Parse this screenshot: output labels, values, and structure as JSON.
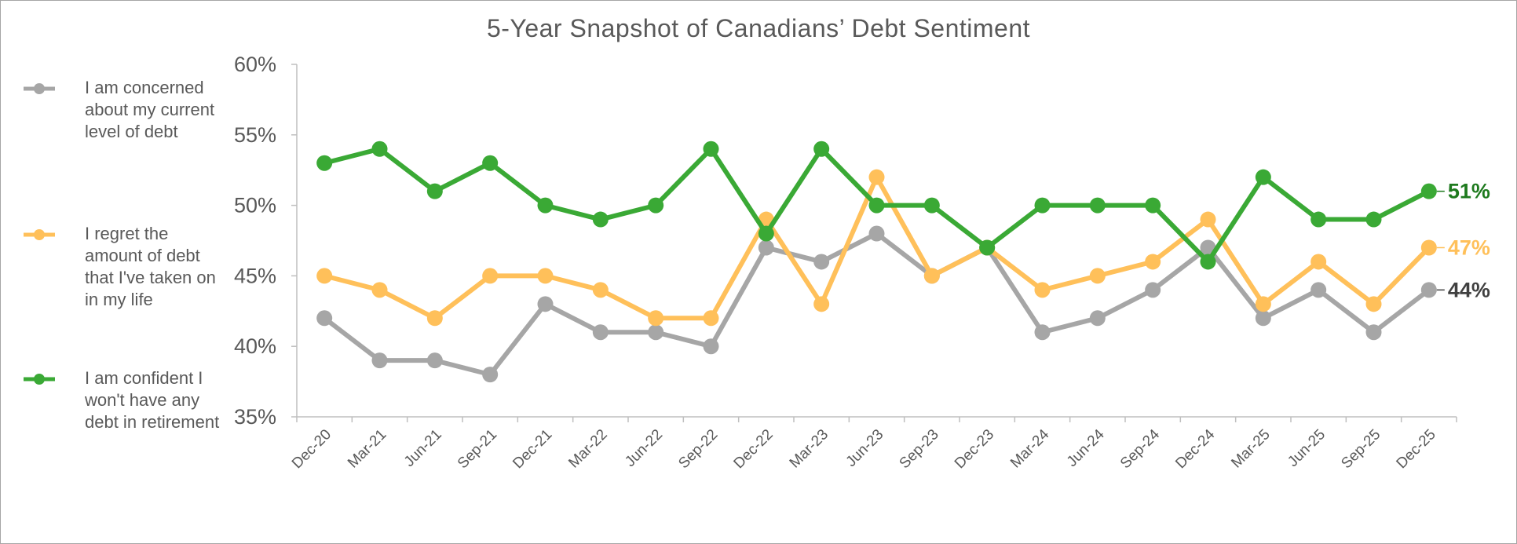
{
  "chart_data": {
    "type": "line",
    "title": "5-Year Snapshot of Canadians’ Debt Sentiment",
    "xlabel": "",
    "ylabel": "",
    "ylim": [
      35,
      60
    ],
    "yticks": [
      "60%",
      "55%",
      "50%",
      "45%",
      "40%",
      "35%"
    ],
    "ytick_values": [
      60,
      55,
      50,
      45,
      40,
      35
    ],
    "categories": [
      "Dec-20",
      "Mar-21",
      "Jun-21",
      "Sep-21",
      "Dec-21",
      "Mar-22",
      "Jun-22",
      "Sep-22",
      "Dec-22",
      "Mar-23",
      "Jun-23",
      "Sep-23",
      "Dec-23",
      "Mar-24",
      "Jun-24",
      "Sep-24",
      "Dec-24",
      "Mar-25",
      "Jun-25",
      "Sep-25",
      "Dec-25"
    ],
    "legend_position": "left",
    "series": [
      {
        "name": "I am concerned about my current level of debt",
        "color": "#a6a6a6",
        "end_label_color": "#404040",
        "end_label": "44%",
        "values": [
          42,
          39,
          39,
          38,
          43,
          41,
          41,
          40,
          47,
          46,
          48,
          45,
          47,
          41,
          42,
          44,
          47,
          42,
          44,
          41,
          44
        ]
      },
      {
        "name": "I regret the amount of debt that I've taken on in my life",
        "color": "#ffc05a",
        "end_label_color": "#ffc05a",
        "end_label": "47%",
        "values": [
          45,
          44,
          42,
          45,
          45,
          44,
          42,
          42,
          49,
          43,
          52,
          45,
          47,
          44,
          45,
          46,
          49,
          43,
          46,
          43,
          47
        ]
      },
      {
        "name": "I am confident I won't have any debt in retirement",
        "color": "#3aa935",
        "end_label_color": "#1e7a1e",
        "end_label": "51%",
        "values": [
          53,
          54,
          51,
          53,
          50,
          49,
          50,
          54,
          48,
          54,
          50,
          50,
          47,
          50,
          50,
          50,
          46,
          52,
          49,
          49,
          51
        ]
      }
    ]
  },
  "legend": [
    {
      "lines": [
        "I am concerned",
        "about my current",
        "level of debt"
      ]
    },
    {
      "lines": [
        "I regret the",
        "amount of debt",
        "that I've taken on",
        "in my life"
      ]
    },
    {
      "lines": [
        "I am confident I",
        "won't have any",
        "debt in retirement"
      ]
    }
  ]
}
